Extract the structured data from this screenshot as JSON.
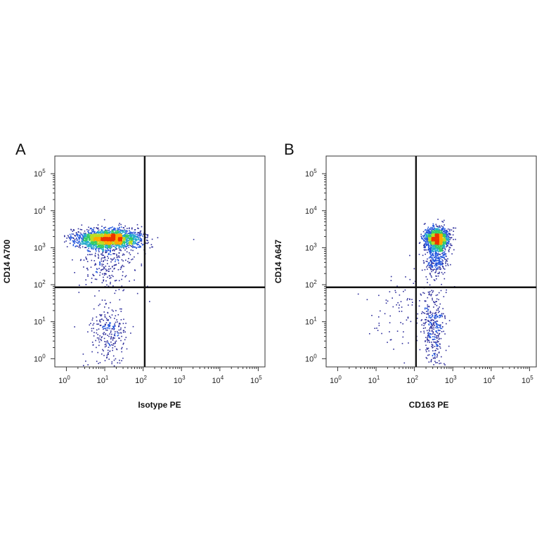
{
  "chart_data": [
    {
      "type": "scatter",
      "panel_label": "A",
      "xlabel": "Isotype PE",
      "ylabel": "CD14 A700",
      "x_scale": "log",
      "y_scale": "log",
      "xlim": [
        0.5,
        150000
      ],
      "ylim": [
        0.6,
        300000
      ],
      "x_ticks": [
        {
          "base": "10",
          "exp": "0",
          "value": 1
        },
        {
          "base": "10",
          "exp": "1",
          "value": 10
        },
        {
          "base": "10",
          "exp": "2",
          "value": 100
        },
        {
          "base": "10",
          "exp": "3",
          "value": 1000
        },
        {
          "base": "10",
          "exp": "4",
          "value": 10000
        },
        {
          "base": "10",
          "exp": "5",
          "value": 100000
        }
      ],
      "y_ticks": [
        {
          "base": "10",
          "exp": "0",
          "value": 1
        },
        {
          "base": "10",
          "exp": "1",
          "value": 10
        },
        {
          "base": "10",
          "exp": "2",
          "value": 100
        },
        {
          "base": "10",
          "exp": "3",
          "value": 1000
        },
        {
          "base": "10",
          "exp": "4",
          "value": 10000
        },
        {
          "base": "10",
          "exp": "5",
          "value": 100000
        }
      ],
      "quadrant_gate": {
        "x": 110,
        "y": 85
      },
      "populations": [
        {
          "x_center": 12,
          "y_center": 1800,
          "x_spread_decades": 0.42,
          "y_spread_decades": 0.13,
          "count": 2200
        },
        {
          "x_center": 12,
          "y_center": 400,
          "x_spread_decades": 0.35,
          "y_spread_decades": 0.35,
          "count": 250
        },
        {
          "x_center": 12,
          "y_center": 5,
          "x_spread_decades": 0.25,
          "y_spread_decades": 0.4,
          "count": 260
        }
      ],
      "density_colors": [
        "#2b2b9a",
        "#2255dd",
        "#22aacc",
        "#33cc66",
        "#bbdd22",
        "#ffaa00",
        "#ee3300"
      ]
    },
    {
      "type": "scatter",
      "panel_label": "B",
      "xlabel": "CD163 PE",
      "ylabel": "CD14 A647",
      "x_scale": "log",
      "y_scale": "log",
      "xlim": [
        0.5,
        150000
      ],
      "ylim": [
        0.6,
        300000
      ],
      "x_ticks": [
        {
          "base": "10",
          "exp": "0",
          "value": 1
        },
        {
          "base": "10",
          "exp": "1",
          "value": 10
        },
        {
          "base": "10",
          "exp": "2",
          "value": 100
        },
        {
          "base": "10",
          "exp": "3",
          "value": 1000
        },
        {
          "base": "10",
          "exp": "4",
          "value": 10000
        },
        {
          "base": "10",
          "exp": "5",
          "value": 100000
        }
      ],
      "y_ticks": [
        {
          "base": "10",
          "exp": "0",
          "value": 1
        },
        {
          "base": "10",
          "exp": "1",
          "value": 10
        },
        {
          "base": "10",
          "exp": "2",
          "value": 100
        },
        {
          "base": "10",
          "exp": "3",
          "value": 1000
        },
        {
          "base": "10",
          "exp": "4",
          "value": 10000
        },
        {
          "base": "10",
          "exp": "5",
          "value": 100000
        }
      ],
      "quadrant_gate": {
        "x": 110,
        "y": 85
      },
      "populations": [
        {
          "x_center": 380,
          "y_center": 1800,
          "x_spread_decades": 0.15,
          "y_spread_decades": 0.15,
          "count": 1300
        },
        {
          "x_center": 350,
          "y_center": 500,
          "x_spread_decades": 0.15,
          "y_spread_decades": 0.25,
          "count": 300
        },
        {
          "x_center": 300,
          "y_center": 8,
          "x_spread_decades": 0.15,
          "y_spread_decades": 0.55,
          "count": 330
        },
        {
          "x_center": 45,
          "y_center": 20,
          "x_spread_decades": 0.4,
          "y_spread_decades": 0.6,
          "count": 90
        }
      ],
      "density_colors": [
        "#2b2b9a",
        "#2255dd",
        "#22aacc",
        "#33cc66",
        "#bbdd22",
        "#ffaa00",
        "#ee3300"
      ]
    }
  ]
}
